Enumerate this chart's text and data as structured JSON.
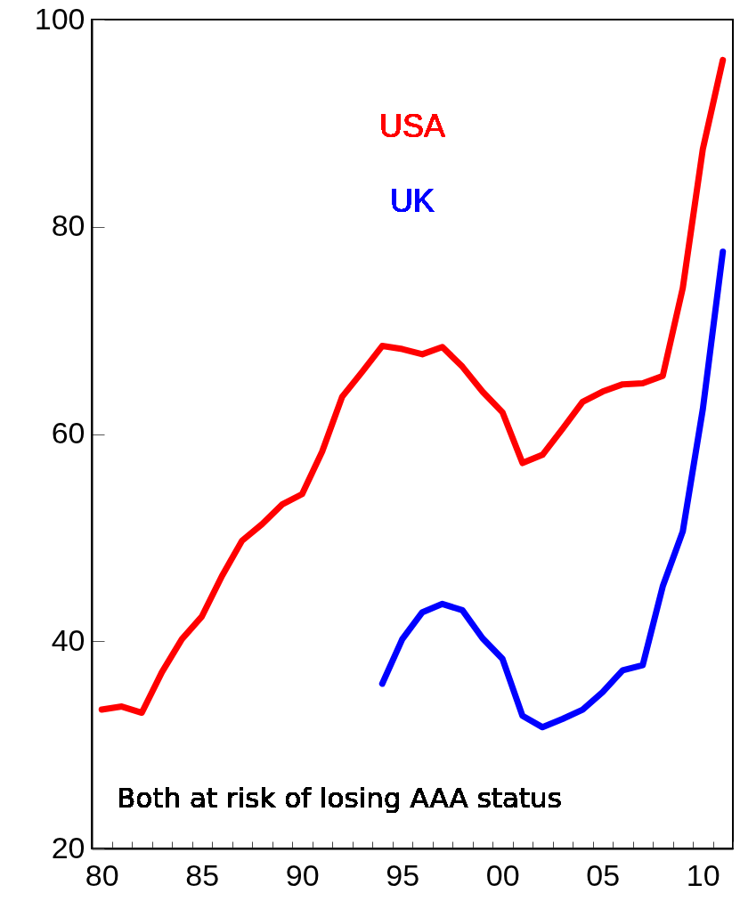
{
  "chart_data": {
    "type": "line",
    "categories": [
      "80",
      null,
      null,
      null,
      null,
      "85",
      null,
      null,
      null,
      null,
      "90",
      null,
      null,
      null,
      null,
      "95",
      null,
      null,
      null,
      null,
      "00",
      null,
      null,
      null,
      null,
      "05",
      null,
      null,
      null,
      null,
      "10",
      null
    ],
    "series": [
      {
        "name": "USA",
        "color": "#ff0000",
        "values": [
          33.4,
          33.7,
          33.1,
          37.0,
          40.2,
          42.4,
          46.3,
          49.7,
          51.3,
          53.2,
          54.2,
          58.3,
          63.6,
          66.0,
          68.5,
          68.2,
          67.7,
          68.4,
          66.5,
          64.1,
          62.1,
          57.2,
          58.0,
          60.5,
          63.1,
          64.1,
          64.8,
          64.9,
          65.6,
          74.1,
          87.5,
          96.1
        ]
      },
      {
        "name": "UK",
        "color": "#0000ff",
        "values": [
          null,
          null,
          null,
          null,
          null,
          null,
          null,
          null,
          null,
          null,
          null,
          null,
          null,
          null,
          35.9,
          40.2,
          42.8,
          43.6,
          43.0,
          40.3,
          38.3,
          32.8,
          31.7,
          32.5,
          33.4,
          35.1,
          37.2,
          37.7,
          45.3,
          50.6,
          62.4,
          77.6
        ]
      }
    ],
    "ylim": [
      20,
      100
    ],
    "yticks": [
      20,
      40,
      60,
      80,
      100
    ],
    "grid": false,
    "legend": "top",
    "line_style": "solid",
    "marker": "none",
    "annotations": [
      "Both at risk of losing AAA status"
    ]
  }
}
